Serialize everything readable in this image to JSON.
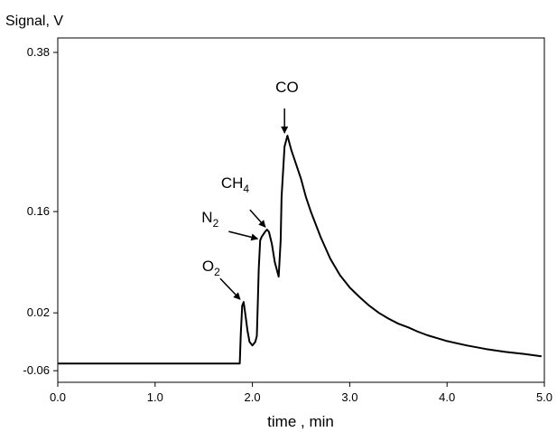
{
  "chart_data": {
    "type": "line",
    "title": "",
    "xlabel": "time , min",
    "ylabel": "Signal, V",
    "xlim": [
      0,
      5
    ],
    "ylim": [
      -0.076,
      0.4
    ],
    "x_ticks": [
      0,
      1,
      2,
      3,
      4,
      5
    ],
    "x_tick_labels": [
      "0.0",
      "1.0",
      "2.0",
      "3.0",
      "4.0",
      "5.0"
    ],
    "y_ticks": [
      -0.06,
      0.02,
      0.16,
      0.38
    ],
    "y_tick_labels": [
      "-0.06",
      "0.02",
      "0.16",
      "0.38"
    ],
    "grid": false,
    "legend": "none",
    "series": [
      {
        "x": [
          0.0,
          1.87,
          1.88,
          1.895,
          1.91,
          1.93,
          1.95,
          1.97,
          2.0,
          2.03,
          2.045,
          2.055,
          2.065,
          2.08,
          2.095,
          2.11,
          2.13,
          2.15,
          2.17,
          2.2,
          2.23,
          2.27,
          2.29,
          2.3,
          2.33,
          2.36,
          2.4,
          2.45,
          2.5,
          2.55,
          2.6,
          2.7,
          2.8,
          2.9,
          3.0,
          3.1,
          3.2,
          3.3,
          3.4,
          3.5,
          3.6,
          3.7,
          3.8,
          3.9,
          4.0,
          4.2,
          4.4,
          4.6,
          4.8,
          4.97
        ],
        "y": [
          -0.05,
          -0.05,
          -0.01,
          0.03,
          0.035,
          0.015,
          -0.005,
          -0.02,
          -0.025,
          -0.02,
          -0.012,
          0.03,
          0.08,
          0.12,
          0.125,
          0.128,
          0.132,
          0.135,
          0.132,
          0.115,
          0.09,
          0.07,
          0.12,
          0.18,
          0.25,
          0.265,
          0.245,
          0.225,
          0.205,
          0.18,
          0.16,
          0.125,
          0.095,
          0.072,
          0.055,
          0.042,
          0.03,
          0.02,
          0.012,
          0.005,
          0.0,
          -0.006,
          -0.011,
          -0.015,
          -0.019,
          -0.025,
          -0.03,
          -0.034,
          -0.037,
          -0.04
        ]
      }
    ],
    "annotations": [
      {
        "label": "O",
        "sub": "2",
        "peak_x": 1.91,
        "peak_y": 0.035
      },
      {
        "label": "N",
        "sub": "2",
        "peak_x": 2.09,
        "peak_y": 0.12
      },
      {
        "label": "CH",
        "sub": "4",
        "peak_x": 2.16,
        "peak_y": 0.135
      },
      {
        "label": "CO",
        "sub": "",
        "peak_x": 2.33,
        "peak_y": 0.265
      }
    ],
    "colors": {
      "line": "#000000",
      "axis": "#000000",
      "background": "#ffffff"
    }
  }
}
